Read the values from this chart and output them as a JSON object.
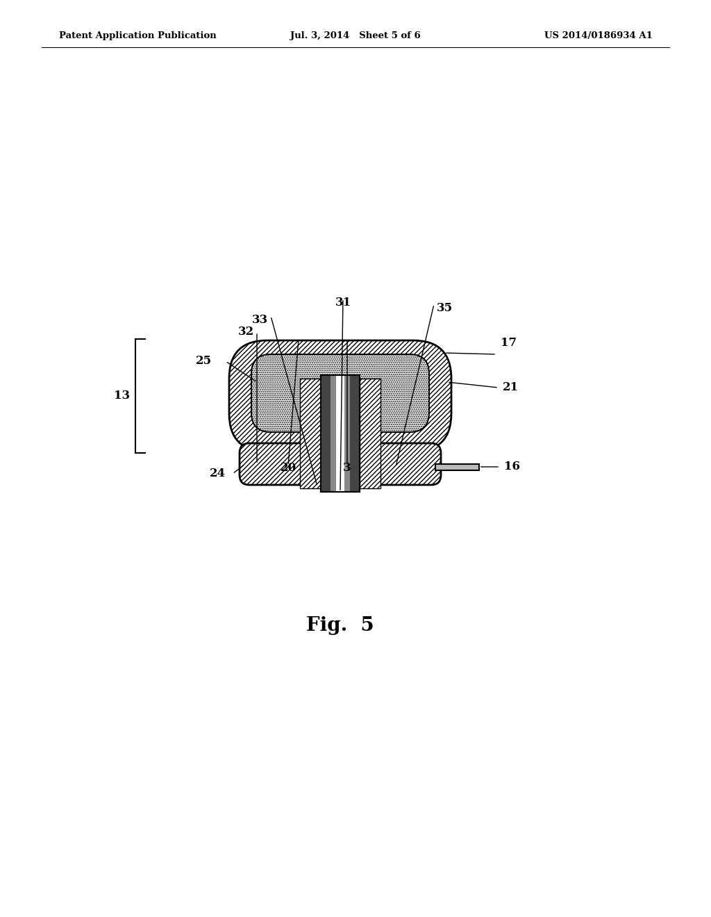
{
  "bg_color": "#ffffff",
  "header_left": "Patent Application Publication",
  "header_mid": "Jul. 3, 2014   Sheet 5 of 6",
  "header_right": "US 2014/0186934 A1",
  "fig_label": "Fig.  5"
}
